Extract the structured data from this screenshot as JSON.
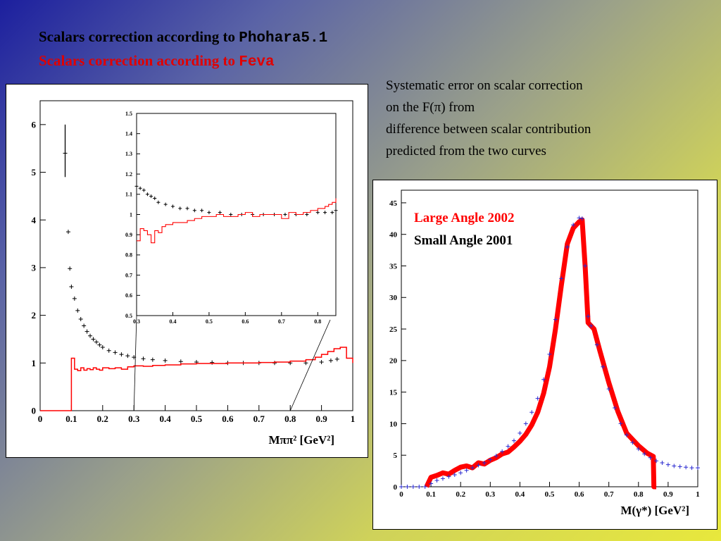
{
  "slide": {
    "title_line1_text": "Scalars correction according to ",
    "title_line1_code": "Phohara5.1",
    "title_line2_text": "Scalars correction according to ",
    "title_line2_code": "Feva",
    "note_lines": [
      "Systematic error on scalar correction",
      "on the F(π) from",
      "difference between scalar contribution",
      "predicted from the two curves"
    ]
  },
  "colors": {
    "red": "#ff0000",
    "black": "#000000",
    "blue": "#2a2ad0"
  },
  "chart_data": [
    {
      "type": "scatter",
      "xlabel": "Mππ² [GeV²]",
      "xlim": [
        0,
        1
      ],
      "ylim": [
        0,
        6.5
      ],
      "xticks": [
        "0",
        "0.1",
        "0.2",
        "0.3",
        "0.4",
        "0.5",
        "0.6",
        "0.7",
        "0.8",
        "0.9",
        "1"
      ],
      "yticks": [
        "0",
        "1",
        "2",
        "3",
        "4",
        "5",
        "6"
      ],
      "series": [
        {
          "color": "#000000",
          "style": "points",
          "x": [
            0.08,
            0.09,
            0.095,
            0.1,
            0.11,
            0.12,
            0.13,
            0.14,
            0.15,
            0.16,
            0.17,
            0.18,
            0.19,
            0.2,
            0.22,
            0.24,
            0.26,
            0.28,
            0.3,
            0.33,
            0.36,
            0.4,
            0.45,
            0.5,
            0.55,
            0.6,
            0.65,
            0.7,
            0.75,
            0.8,
            0.85,
            0.9,
            0.93,
            0.95
          ],
          "y": [
            5.4,
            3.75,
            2.98,
            2.6,
            2.35,
            2.1,
            1.92,
            1.78,
            1.66,
            1.57,
            1.5,
            1.44,
            1.38,
            1.33,
            1.26,
            1.22,
            1.18,
            1.15,
            1.12,
            1.09,
            1.07,
            1.05,
            1.03,
            1.02,
            1.01,
            1.0,
            1.0,
            1.0,
            1.0,
            1.0,
            1.0,
            1.02,
            1.05,
            1.08
          ]
        },
        {
          "color": "#ff0000",
          "style": "step",
          "x": [
            0.0,
            0.1,
            0.11,
            0.12,
            0.13,
            0.14,
            0.15,
            0.16,
            0.17,
            0.18,
            0.19,
            0.2,
            0.22,
            0.24,
            0.26,
            0.28,
            0.3,
            0.33,
            0.36,
            0.4,
            0.45,
            0.5,
            0.55,
            0.6,
            0.65,
            0.7,
            0.75,
            0.8,
            0.85,
            0.88,
            0.9,
            0.92,
            0.94,
            0.96,
            0.98,
            1.0
          ],
          "y": [
            0,
            1.1,
            0.87,
            0.84,
            0.9,
            0.85,
            0.88,
            0.86,
            0.9,
            0.87,
            0.85,
            0.9,
            0.88,
            0.9,
            0.87,
            0.92,
            0.94,
            0.93,
            0.95,
            0.96,
            0.98,
            0.99,
            0.99,
            1.0,
            1.0,
            1.01,
            1.02,
            1.04,
            1.07,
            1.12,
            1.18,
            1.24,
            1.3,
            1.33,
            1.1,
            1.0
          ]
        }
      ]
    },
    {
      "type": "scatter",
      "inset": true,
      "xlim": [
        0.3,
        0.85
      ],
      "ylim": [
        0.5,
        1.5
      ],
      "xticks": [
        "0.3",
        "0.4",
        "0.5",
        "0.6",
        "0.7",
        "0.8"
      ],
      "yticks": [
        "0.5",
        "0.6",
        "0.7",
        "0.8",
        "0.9",
        "1",
        "1.1",
        "1.2",
        "1.3",
        "1.4",
        "1.5"
      ],
      "series": [
        {
          "color": "#000000",
          "style": "points",
          "x": [
            0.3,
            0.31,
            0.32,
            0.33,
            0.34,
            0.35,
            0.36,
            0.38,
            0.4,
            0.42,
            0.44,
            0.46,
            0.48,
            0.5,
            0.53,
            0.56,
            0.59,
            0.62,
            0.65,
            0.68,
            0.71,
            0.74,
            0.77,
            0.8,
            0.82,
            0.84,
            0.85
          ],
          "y": [
            1.14,
            1.13,
            1.12,
            1.1,
            1.09,
            1.08,
            1.06,
            1.05,
            1.04,
            1.03,
            1.03,
            1.02,
            1.02,
            1.01,
            1.01,
            1.0,
            1.0,
            1.0,
            1.0,
            1.0,
            1.0,
            1.0,
            1.0,
            1.01,
            1.01,
            1.01,
            1.02
          ]
        },
        {
          "color": "#ff0000",
          "style": "step",
          "x": [
            0.3,
            0.31,
            0.32,
            0.33,
            0.34,
            0.35,
            0.36,
            0.37,
            0.38,
            0.4,
            0.42,
            0.44,
            0.46,
            0.48,
            0.5,
            0.52,
            0.54,
            0.56,
            0.58,
            0.6,
            0.62,
            0.64,
            0.66,
            0.68,
            0.7,
            0.72,
            0.74,
            0.76,
            0.78,
            0.8,
            0.81,
            0.82,
            0.83,
            0.84,
            0.85
          ],
          "y": [
            0.87,
            0.93,
            0.92,
            0.9,
            0.86,
            0.92,
            0.91,
            0.94,
            0.95,
            0.96,
            0.96,
            0.97,
            0.98,
            0.99,
            0.99,
            1.0,
            0.99,
            0.99,
            1.0,
            1.01,
            0.99,
            1.0,
            1.0,
            1.0,
            0.98,
            1.01,
            1.0,
            1.01,
            1.02,
            1.03,
            1.03,
            1.04,
            1.05,
            1.06,
            1.08
          ]
        }
      ]
    },
    {
      "type": "line",
      "xlabel": "M(γ*) [GeV²]",
      "xlim": [
        0,
        1
      ],
      "ylim": [
        0,
        47
      ],
      "xticks": [
        "0",
        "0.1",
        "0.2",
        "0.3",
        "0.4",
        "0.5",
        "0.6",
        "0.7",
        "0.8",
        "0.9",
        "1"
      ],
      "yticks": [
        "0",
        "5",
        "10",
        "15",
        "20",
        "25",
        "30",
        "35",
        "40",
        "45"
      ],
      "legend": [
        {
          "name": "Large Angle 2002",
          "color": "#ff0000"
        },
        {
          "name": "Small Angle 2001",
          "color": "#000000"
        }
      ],
      "series": [
        {
          "name": "Large Angle 2002",
          "color": "#ff0000",
          "style": "band",
          "x": [
            0.085,
            0.1,
            0.12,
            0.14,
            0.16,
            0.18,
            0.2,
            0.22,
            0.24,
            0.26,
            0.28,
            0.3,
            0.32,
            0.34,
            0.36,
            0.38,
            0.4,
            0.42,
            0.44,
            0.46,
            0.48,
            0.5,
            0.52,
            0.54,
            0.56,
            0.58,
            0.6,
            0.61,
            0.62,
            0.63,
            0.65,
            0.67,
            0.7,
            0.73,
            0.76,
            0.8,
            0.83,
            0.85,
            0.852,
            0.86
          ],
          "y": [
            0,
            1.5,
            1.8,
            2.2,
            2.0,
            2.6,
            3.1,
            3.3,
            3.0,
            3.8,
            3.6,
            4.2,
            4.6,
            5.2,
            5.5,
            6.3,
            7.2,
            8.3,
            9.8,
            11.8,
            14.8,
            19.0,
            25.0,
            32.0,
            38.5,
            41.0,
            42.0,
            42.3,
            35.0,
            26.0,
            25.0,
            21.5,
            16.5,
            12.0,
            8.5,
            6.5,
            5.3,
            4.8,
            0,
            0
          ]
        },
        {
          "name": "Small Angle 2001",
          "color": "#000000",
          "style": "points",
          "x": [
            0.0,
            0.02,
            0.04,
            0.06,
            0.08,
            0.1,
            0.12,
            0.14,
            0.16,
            0.18,
            0.2,
            0.22,
            0.24,
            0.26,
            0.28,
            0.3,
            0.32,
            0.34,
            0.36,
            0.38,
            0.4,
            0.42,
            0.44,
            0.46,
            0.48,
            0.5,
            0.52,
            0.54,
            0.56,
            0.58,
            0.6,
            0.61,
            0.62,
            0.63,
            0.64,
            0.66,
            0.68,
            0.7,
            0.72,
            0.74,
            0.76,
            0.78,
            0.8,
            0.82,
            0.84,
            0.86,
            0.88,
            0.9,
            0.92,
            0.94,
            0.96,
            0.98,
            1.0
          ],
          "y": [
            0,
            0,
            0,
            0,
            0,
            0.5,
            1.0,
            1.3,
            1.6,
            1.9,
            2.2,
            2.6,
            3.0,
            3.4,
            3.8,
            4.3,
            4.9,
            5.6,
            6.4,
            7.3,
            8.5,
            10.0,
            11.8,
            14.0,
            17.0,
            21.0,
            26.5,
            33.0,
            38.0,
            41.5,
            42.6,
            42.5,
            35.0,
            27.0,
            25.5,
            22.5,
            19.0,
            15.5,
            12.5,
            10.0,
            8.2,
            7.0,
            6.0,
            5.2,
            4.6,
            4.1,
            3.8,
            3.5,
            3.3,
            3.2,
            3.1,
            3.0,
            3.0
          ]
        }
      ]
    }
  ]
}
